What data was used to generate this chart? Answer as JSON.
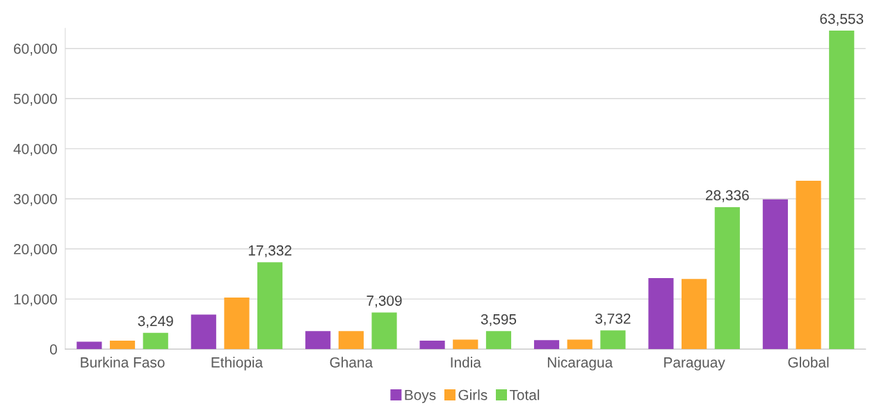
{
  "chart_data": {
    "type": "bar",
    "categories": [
      "Burkina Faso",
      "Ethiopia",
      "Ghana",
      "India",
      "Nicaragua",
      "Paraguay",
      "Global"
    ],
    "series": [
      {
        "name": "Boys",
        "color": "#9543bb",
        "values": [
          1500,
          6900,
          3600,
          1700,
          1800,
          14200,
          29900
        ]
      },
      {
        "name": "Girls",
        "color": "#ffa62b",
        "values": [
          1700,
          10300,
          3600,
          1900,
          1900,
          14000,
          33600
        ]
      },
      {
        "name": "Total",
        "color": "#77d353",
        "values": [
          3249,
          17332,
          7309,
          3595,
          3732,
          28336,
          63553
        ],
        "value_labels": [
          "3,249",
          "17,332",
          "7,309",
          "3,595",
          "3,732",
          "28,336",
          "63,553"
        ]
      }
    ],
    "ylim": [
      0,
      64000
    ],
    "yticks": [
      {
        "value": 0,
        "label": "0"
      },
      {
        "value": 10000,
        "label": "10,000"
      },
      {
        "value": 20000,
        "label": "20,000"
      },
      {
        "value": 30000,
        "label": "30,000"
      },
      {
        "value": 40000,
        "label": "40,000"
      },
      {
        "value": 50000,
        "label": "50,000"
      },
      {
        "value": 60000,
        "label": "60,000"
      }
    ],
    "grid": "y",
    "legend": "bottom"
  }
}
